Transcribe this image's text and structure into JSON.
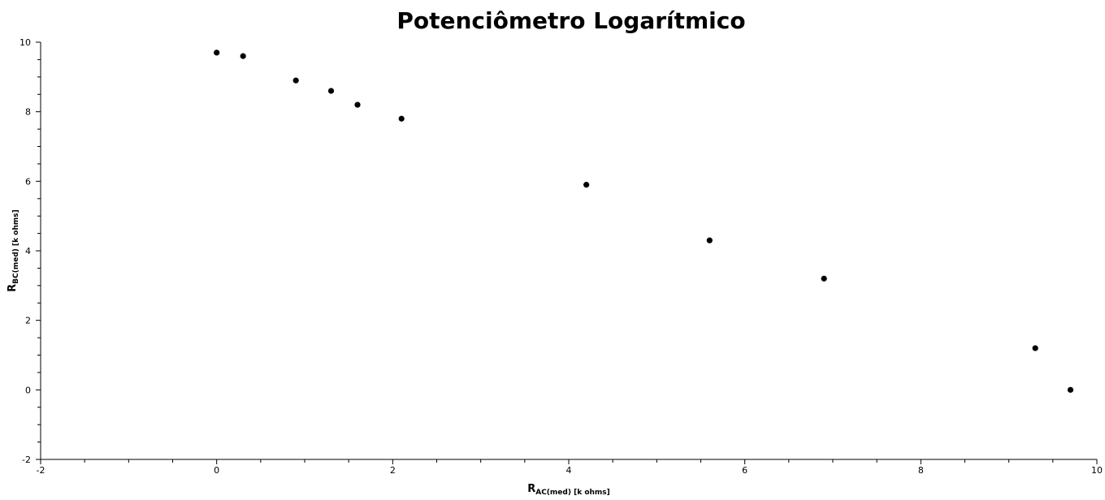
{
  "chart_data": {
    "type": "scatter",
    "title": "Potenciômetro Logarítmico",
    "xlabel": {
      "main": "R",
      "sub": "AC(med) [k ohms]"
    },
    "ylabel": {
      "main": "R",
      "sub": "BC(med) [k ohms]"
    },
    "xlim": [
      -2,
      10
    ],
    "ylim": [
      -2,
      10
    ],
    "xticks": [
      -2,
      0,
      2,
      4,
      6,
      8,
      10
    ],
    "yticks": [
      -2,
      0,
      2,
      4,
      6,
      8,
      10
    ],
    "grid": false,
    "marker_color": "#000000",
    "series": [
      {
        "x": [
          0.0,
          0.3,
          0.9,
          1.3,
          1.6,
          2.1,
          4.2,
          5.6,
          6.9,
          9.3,
          9.7
        ],
        "y": [
          9.7,
          9.6,
          8.9,
          8.6,
          8.2,
          7.8,
          5.9,
          4.3,
          3.2,
          1.2,
          0.0
        ]
      }
    ]
  }
}
